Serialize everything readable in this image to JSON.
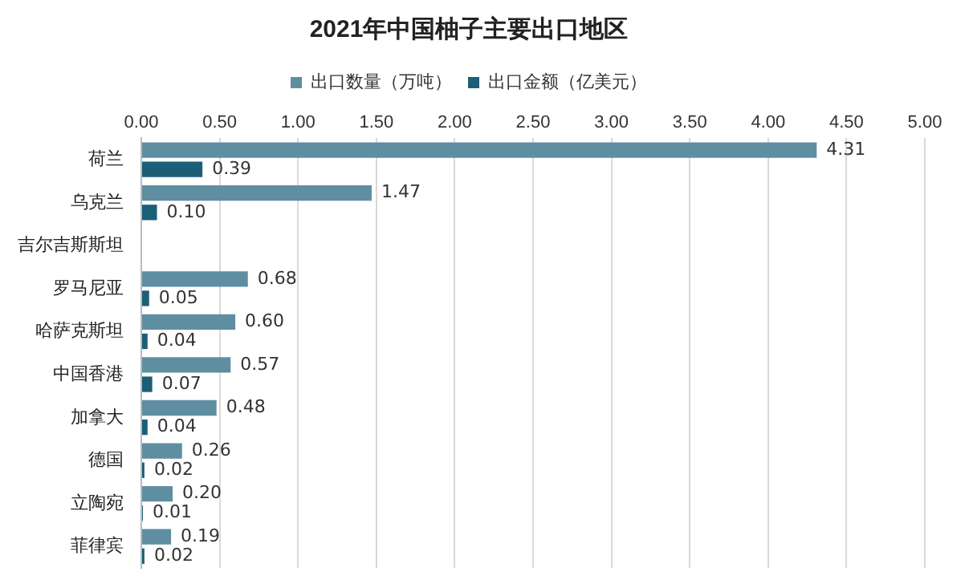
{
  "chart_data": {
    "type": "bar",
    "orientation": "horizontal",
    "title": "2021年中国柚子主要出口地区",
    "categories": [
      "荷兰",
      "乌克兰",
      "吉尔吉斯斯坦",
      "罗马尼亚",
      "哈萨克斯坦",
      "中国香港",
      "加拿大",
      "德国",
      "立陶宛",
      "菲律宾"
    ],
    "series": [
      {
        "name": "出口数量（万吨）",
        "color": "#5f8ea1",
        "values": [
          4.31,
          1.47,
          null,
          0.68,
          0.6,
          0.57,
          0.48,
          0.26,
          0.2,
          0.19
        ],
        "value_labels": [
          "4.31",
          "1.47",
          null,
          "0.68",
          "0.60",
          "0.57",
          "0.48",
          "0.26",
          "0.20",
          "0.19"
        ]
      },
      {
        "name": "出口金额（亿美元）",
        "color": "#1b5e78",
        "values": [
          0.39,
          0.1,
          null,
          0.05,
          0.04,
          0.07,
          0.04,
          0.02,
          0.01,
          0.02
        ],
        "value_labels": [
          "0.39",
          "0.10",
          null,
          "0.05",
          "0.04",
          "0.07",
          "0.04",
          "0.02",
          "0.01",
          "0.02"
        ]
      }
    ],
    "xlim": [
      0,
      5
    ],
    "xticks": [
      {
        "value": 0,
        "label": "0.00"
      },
      {
        "value": 0.5,
        "label": "0.50"
      },
      {
        "value": 1,
        "label": "1.00"
      },
      {
        "value": 1.5,
        "label": "1.50"
      },
      {
        "value": 2,
        "label": "2.00"
      },
      {
        "value": 2.5,
        "label": "2.50"
      },
      {
        "value": 3,
        "label": "3.00"
      },
      {
        "value": 3.5,
        "label": "3.50"
      },
      {
        "value": 4,
        "label": "4.00"
      },
      {
        "value": 4.5,
        "label": "4.50"
      },
      {
        "value": 5,
        "label": "5.00"
      }
    ],
    "grid": "x",
    "legend": "top"
  }
}
